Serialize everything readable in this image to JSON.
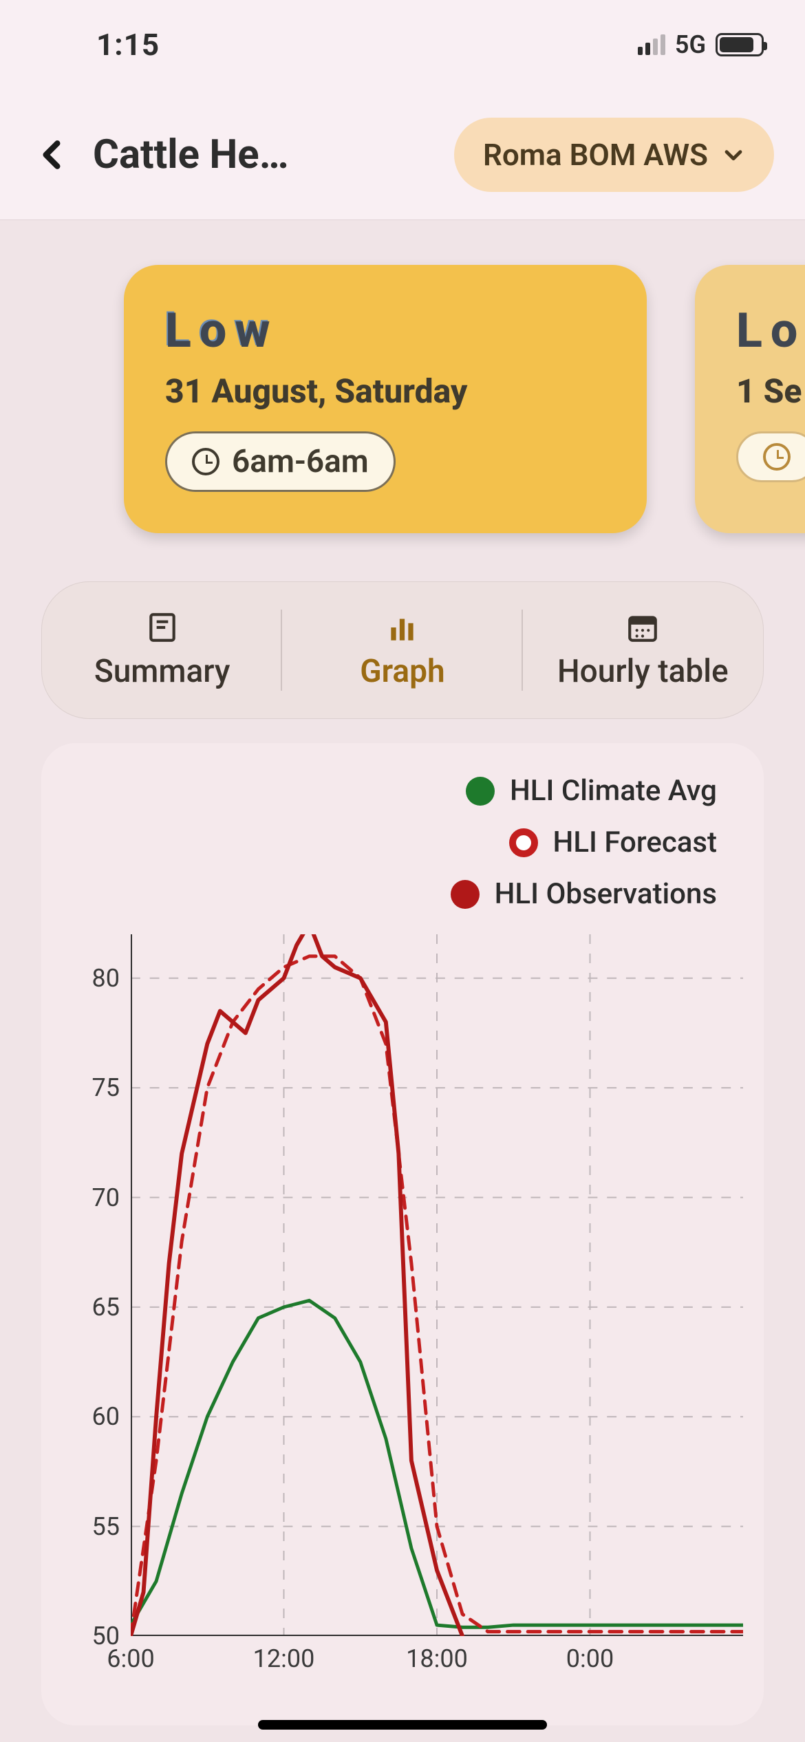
{
  "statusbar": {
    "time": "1:15",
    "network_label": "5G",
    "battery_pct": 85
  },
  "header": {
    "title": "Cattle He…",
    "location_label": "Roma BOM AWS"
  },
  "day_cards": [
    {
      "level": "Low",
      "date": "31 August, Saturday",
      "time_range": "6am-6am",
      "bg": "#f3c14c"
    },
    {
      "level": "Lo",
      "date": "1 Se",
      "time_range": "",
      "bg": "#f2cf87"
    }
  ],
  "tabs": {
    "summary": "Summary",
    "graph": "Graph",
    "hourly": "Hourly table",
    "active": "graph"
  },
  "legend": {
    "climate": {
      "label": "HLI Climate Avg",
      "color": "#1e7a2c"
    },
    "forecast": {
      "label": "HLI Forecast",
      "color": "#c31f1f"
    },
    "observations": {
      "label": "HLI Observations",
      "color": "#b01818"
    }
  },
  "chart": {
    "type": "line",
    "background": "#f5e9ec",
    "grid_color": "#bfb6b9",
    "axis_color": "#2d2d2d",
    "y": {
      "min": 50,
      "max": 82,
      "ticks": [
        50,
        55,
        60,
        65,
        70,
        75,
        80
      ]
    },
    "x": {
      "min": 6,
      "max": 30,
      "ticks": [
        6,
        12,
        18,
        24
      ],
      "tick_labels": [
        "6:00",
        "12:00",
        "18:00",
        "0:00"
      ]
    },
    "vgrid": [
      12,
      18,
      24
    ],
    "series": {
      "climate": {
        "color": "#1e7a2c",
        "width": 5,
        "dash": null,
        "points": [
          [
            6,
            50.5
          ],
          [
            7,
            52.5
          ],
          [
            8,
            56.5
          ],
          [
            9,
            60
          ],
          [
            10,
            62.5
          ],
          [
            11,
            64.5
          ],
          [
            12,
            65
          ],
          [
            13,
            65.3
          ],
          [
            14,
            64.5
          ],
          [
            15,
            62.5
          ],
          [
            16,
            59
          ],
          [
            17,
            54
          ],
          [
            18,
            50.5
          ],
          [
            19,
            50.4
          ],
          [
            20,
            50.4
          ],
          [
            21,
            50.5
          ],
          [
            22,
            50.5
          ],
          [
            23,
            50.5
          ],
          [
            24,
            50.5
          ],
          [
            25,
            50.5
          ],
          [
            26,
            50.5
          ],
          [
            27,
            50.5
          ],
          [
            28,
            50.5
          ],
          [
            29,
            50.5
          ],
          [
            30,
            50.5
          ]
        ]
      },
      "forecast": {
        "color": "#c31f1f",
        "width": 5,
        "dash": "18 12",
        "points": [
          [
            6,
            50
          ],
          [
            7,
            58
          ],
          [
            8,
            68
          ],
          [
            9,
            75
          ],
          [
            10,
            78
          ],
          [
            11,
            79.5
          ],
          [
            12,
            80.5
          ],
          [
            13,
            81
          ],
          [
            14,
            81
          ],
          [
            15,
            80
          ],
          [
            16,
            77
          ],
          [
            17,
            67
          ],
          [
            18,
            55
          ],
          [
            19,
            51
          ],
          [
            20,
            50.2
          ],
          [
            21,
            50.2
          ],
          [
            22,
            50.2
          ],
          [
            23,
            50.2
          ],
          [
            24,
            50.2
          ],
          [
            25,
            50.2
          ],
          [
            26,
            50.2
          ],
          [
            27,
            50.2
          ],
          [
            28,
            50.2
          ],
          [
            29,
            50.2
          ],
          [
            30,
            50.2
          ]
        ]
      },
      "observations": {
        "color": "#b01818",
        "width": 6,
        "dash": null,
        "points": [
          [
            6,
            50
          ],
          [
            6.5,
            52
          ],
          [
            7,
            60
          ],
          [
            7.5,
            67
          ],
          [
            8,
            72
          ],
          [
            9,
            77
          ],
          [
            9.5,
            78.5
          ],
          [
            10,
            78
          ],
          [
            10.5,
            77.5
          ],
          [
            11,
            79
          ],
          [
            12,
            80
          ],
          [
            12.5,
            81.5
          ],
          [
            13,
            82.5
          ],
          [
            13.5,
            81
          ],
          [
            14,
            80.5
          ],
          [
            15,
            80
          ],
          [
            16,
            78
          ],
          [
            16.5,
            72
          ],
          [
            17,
            58
          ],
          [
            18,
            53
          ],
          [
            18.5,
            51.5
          ],
          [
            19,
            50
          ]
        ]
      }
    }
  }
}
